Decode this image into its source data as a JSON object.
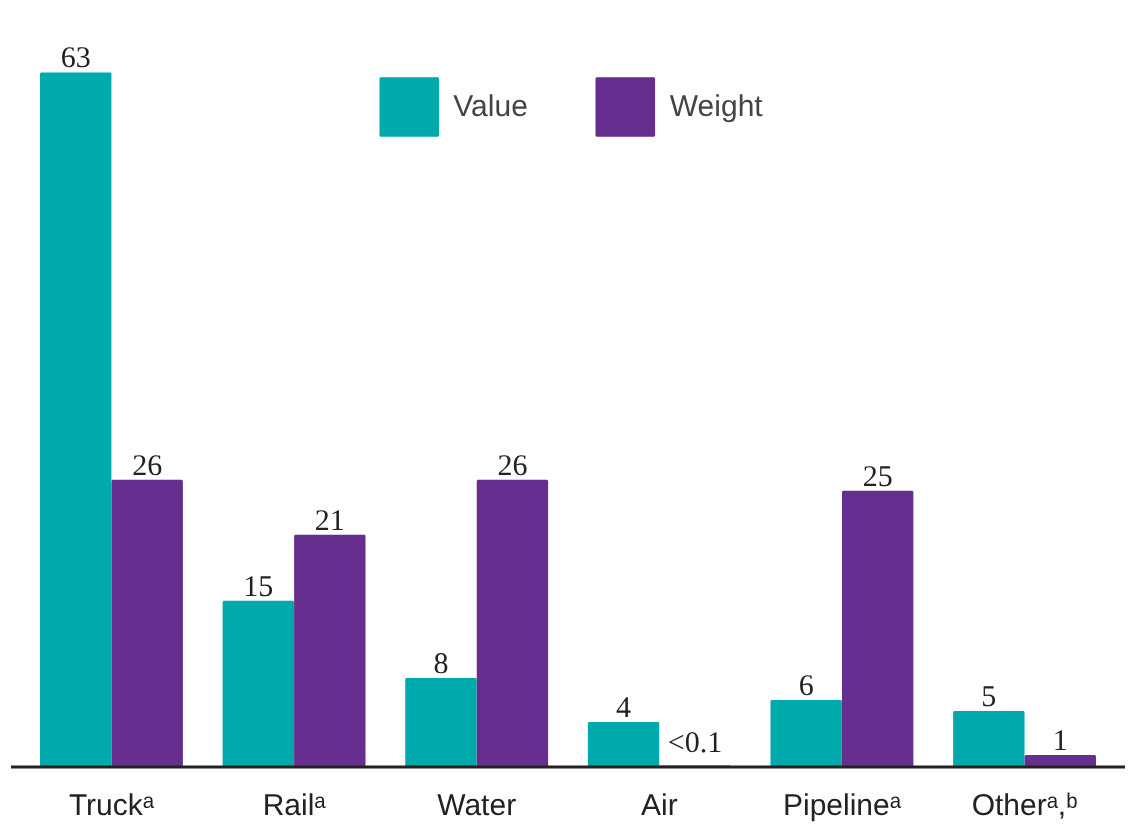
{
  "chart_data": {
    "type": "bar",
    "categories": [
      "Truckᵃ",
      "Railᵃ",
      "Water",
      "Air",
      "Pipelineᵃ",
      "Otherᵃ,ᵇ"
    ],
    "series": [
      {
        "name": "Value",
        "color": "#00a9ac",
        "values": [
          63,
          15,
          8,
          4,
          6,
          5
        ],
        "value_labels": [
          "63",
          "15",
          "8",
          "4",
          "6",
          "5"
        ]
      },
      {
        "name": "Weight",
        "color": "#662f8f",
        "values": [
          26,
          21,
          26,
          0.05,
          25,
          1
        ],
        "value_labels": [
          "26",
          "21",
          "26",
          "<0.1",
          "25",
          "1"
        ]
      }
    ],
    "legend": "top",
    "grid": false
  }
}
